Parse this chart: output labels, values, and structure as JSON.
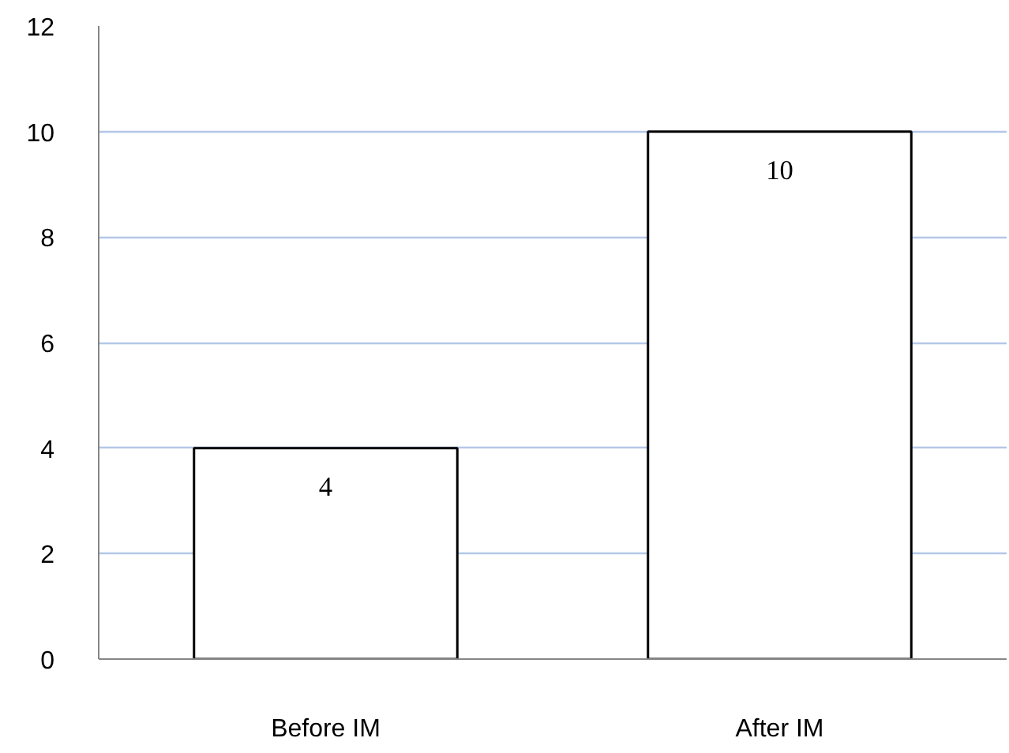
{
  "chart_data": {
    "type": "bar",
    "categories": [
      "Before IM",
      "After IM"
    ],
    "values": [
      4,
      10
    ],
    "color": "#ffffff",
    "ylim": [
      0,
      12
    ],
    "yticks": [
      0,
      2,
      4,
      6,
      8,
      10,
      12
    ],
    "grid": "y",
    "data_labels": true
  }
}
